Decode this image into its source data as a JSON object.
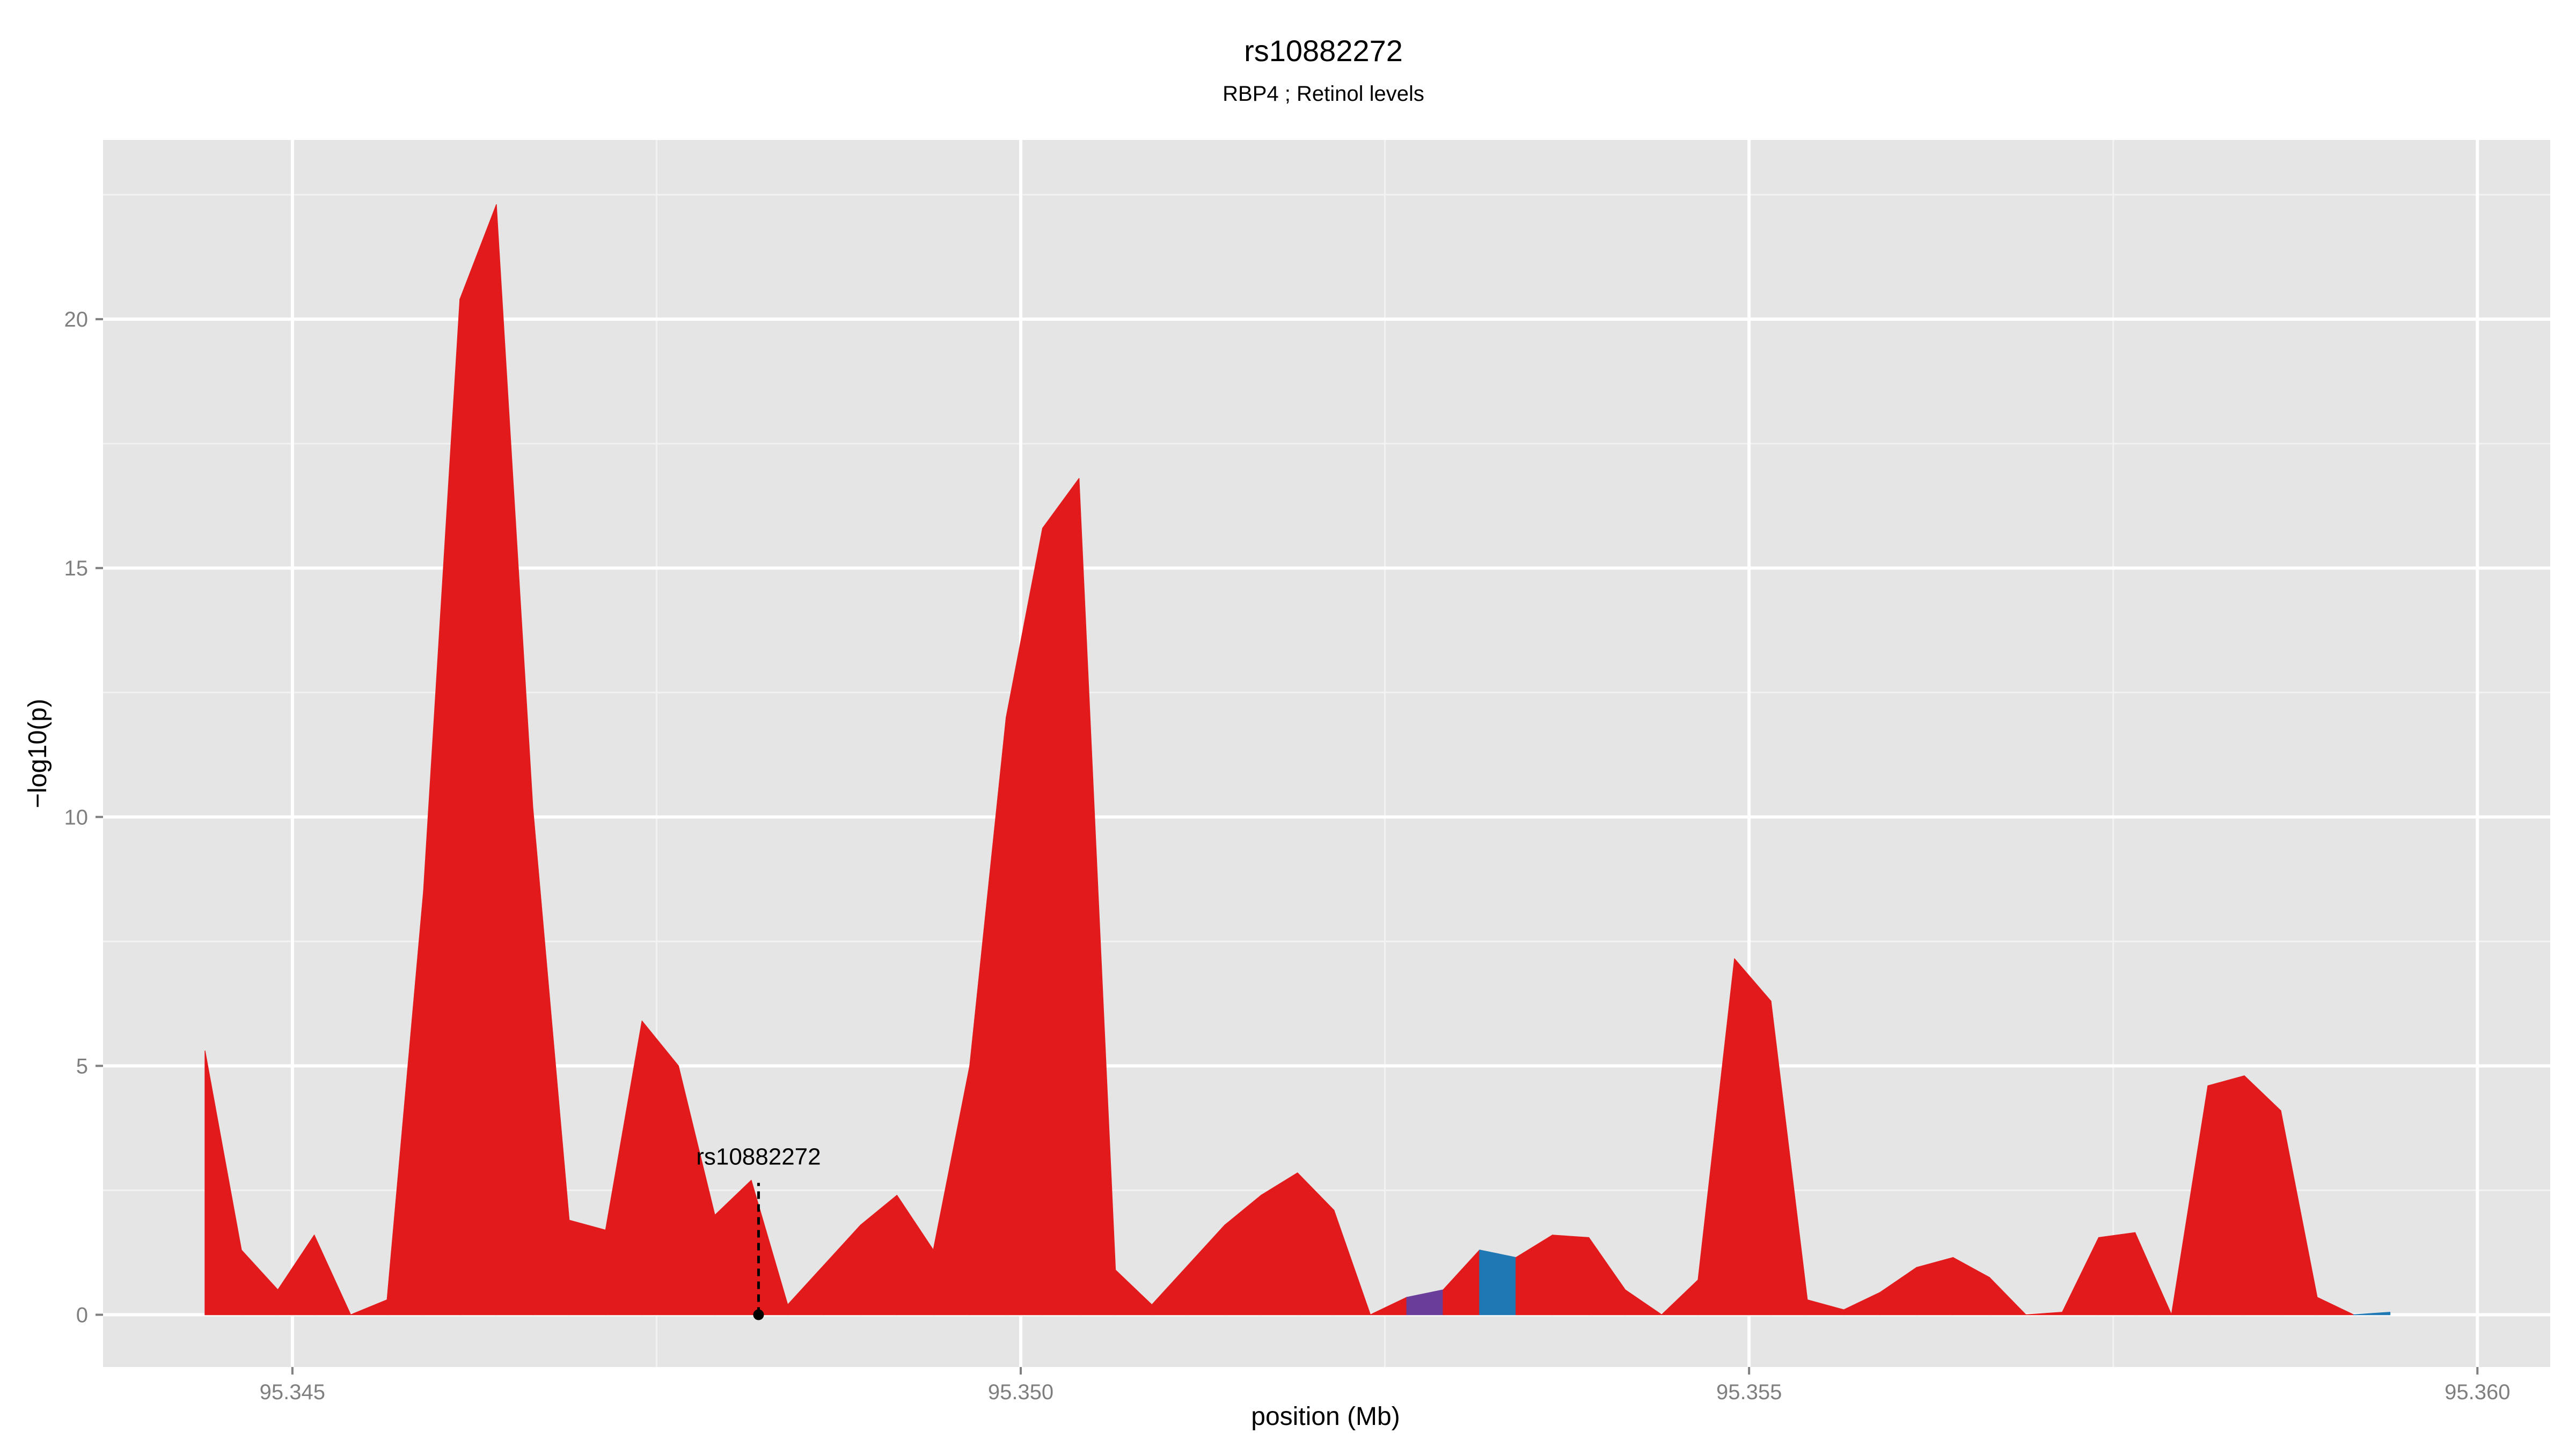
{
  "colors": {
    "panel_background": "#e5e5e5",
    "grid_major": "#ffffff",
    "grid_minor": "#f2f2f2",
    "tick_label": "#7f7f7f",
    "high_ld": "#e31a1c",
    "mid_ld": "#6a3d9a",
    "low_ld": "#1f78b4",
    "annotation": "#000000"
  },
  "chart_data": {
    "type": "area",
    "title": "rs10882272",
    "subtitle": "RBP4 ; Retinol levels",
    "xlabel": "position (Mb)",
    "ylabel": "−log10(p)",
    "xlim": [
      95.3437,
      95.3605
    ],
    "ylim": [
      -1.05,
      23.6
    ],
    "x_ticks": [
      95.345,
      95.35,
      95.355,
      95.36
    ],
    "x_tick_labels": [
      "95.345",
      "95.350",
      "95.355",
      "95.360"
    ],
    "x_minor_ticks": [
      95.3475,
      95.3525,
      95.3575
    ],
    "y_ticks": [
      0,
      5,
      10,
      15,
      20
    ],
    "y_tick_labels": [
      "0",
      "5",
      "10",
      "15",
      "20"
    ],
    "y_minor_ticks": [
      2.5,
      7.5,
      12.5,
      17.5,
      22.5
    ],
    "grid": true,
    "x": [
      95.3444,
      95.34465,
      95.3449,
      95.34515,
      95.3454,
      95.34565,
      95.3459,
      95.34615,
      95.3464,
      95.34665,
      95.3469,
      95.34715,
      95.3474,
      95.34765,
      95.3479,
      95.34815,
      95.3484,
      95.34865,
      95.3489,
      95.34915,
      95.3494,
      95.34965,
      95.3499,
      95.35015,
      95.3504,
      95.35065,
      95.3509,
      95.35115,
      95.3514,
      95.35165,
      95.3519,
      95.35215,
      95.3524,
      95.35265,
      95.3529,
      95.35315,
      95.3534,
      95.35365,
      95.3539,
      95.35415,
      95.3544,
      95.35465,
      95.3549,
      95.35515,
      95.3554,
      95.35565,
      95.3559,
      95.35615,
      95.3564,
      95.35665,
      95.3569,
      95.35715,
      95.3574,
      95.35765,
      95.3579,
      95.35815,
      95.3584,
      95.35865,
      95.3589,
      95.35915,
      95.3594
    ],
    "y": [
      5.3,
      1.3,
      0.5,
      1.6,
      0.0,
      0.3,
      8.5,
      20.4,
      22.3,
      10.2,
      1.9,
      1.7,
      5.9,
      5.0,
      2.0,
      2.7,
      0.2,
      1.0,
      1.8,
      2.4,
      1.3,
      5.0,
      12.0,
      15.8,
      16.8,
      0.9,
      0.2,
      1.0,
      1.8,
      2.4,
      2.85,
      2.1,
      0.0,
      0.35,
      0.5,
      1.3,
      1.15,
      1.6,
      1.55,
      0.5,
      0.0,
      0.7,
      7.15,
      6.3,
      0.3,
      0.1,
      0.45,
      0.95,
      1.15,
      0.75,
      0.0,
      0.05,
      1.55,
      1.65,
      0.0,
      4.6,
      4.8,
      4.1,
      0.35,
      0.0,
      0.05
    ],
    "segment_ld": [
      "high",
      "high",
      "high",
      "high",
      "high",
      "high",
      "high",
      "high",
      "high",
      "high",
      "high",
      "high",
      "high",
      "high",
      "high",
      "high",
      "high",
      "high",
      "high",
      "high",
      "high",
      "high",
      "high",
      "high",
      "high",
      "high",
      "high",
      "high",
      "high",
      "high",
      "high",
      "high",
      "high",
      "mid",
      "high",
      "low",
      "high",
      "high",
      "high",
      "high",
      "high",
      "high",
      "high",
      "high",
      "high",
      "high",
      "high",
      "high",
      "high",
      "high",
      "high",
      "high",
      "high",
      "high",
      "high",
      "high",
      "high",
      "high",
      "high",
      "low",
      "high"
    ],
    "annotation": {
      "label": "rs10882272",
      "x": 95.3482,
      "y_point": 0,
      "y_label": 2.8
    }
  }
}
